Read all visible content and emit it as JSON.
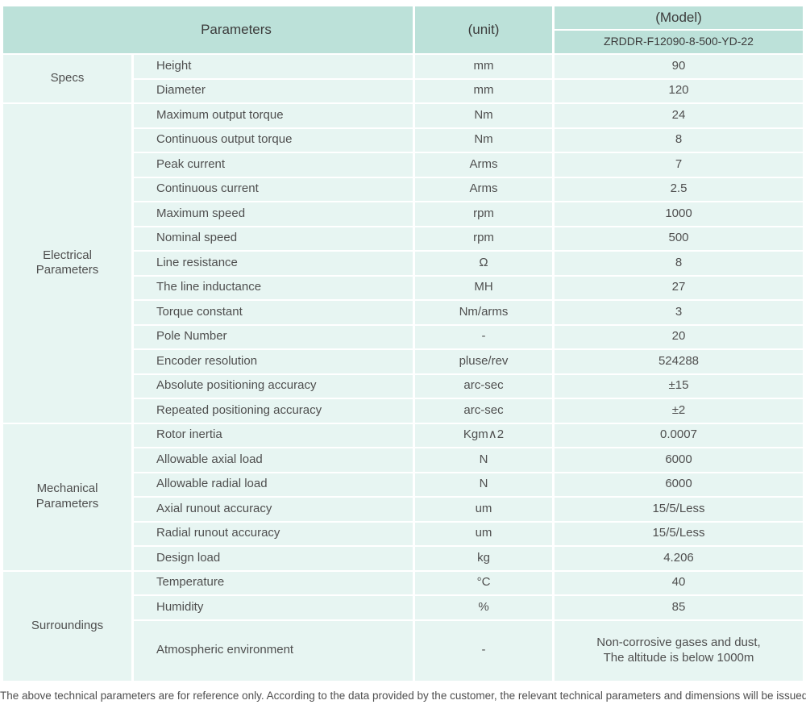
{
  "colors": {
    "header_bg": "#bce1d9",
    "cell_bg": "#e7f5f2",
    "separator": "#ffffff",
    "text": "#4f4f4f"
  },
  "header": {
    "parameters_label": "Parameters",
    "unit_label": "(unit)",
    "model_label": "(Model)",
    "model_code": "ZRDDR-F12090-8-500-YD-22"
  },
  "sections": [
    {
      "label": "Specs",
      "rows": [
        {
          "name": "Height",
          "unit": "mm",
          "value": "90"
        },
        {
          "name": "Diameter",
          "unit": "mm",
          "value": "120"
        }
      ]
    },
    {
      "label": "Electrical Parameters",
      "rows": [
        {
          "name": "Maximum output torque",
          "unit": "Nm",
          "value": "24"
        },
        {
          "name": "Continuous output torque",
          "unit": "Nm",
          "value": "8"
        },
        {
          "name": "Peak current",
          "unit": "Arms",
          "value": "7"
        },
        {
          "name": "Continuous current",
          "unit": "Arms",
          "value": "2.5"
        },
        {
          "name": "Maximum speed",
          "unit": "rpm",
          "value": "1000"
        },
        {
          "name": "Nominal speed",
          "unit": "rpm",
          "value": "500"
        },
        {
          "name": "Line resistance",
          "unit": "Ω",
          "value": "8"
        },
        {
          "name": "The line inductance",
          "unit": "MH",
          "value": "27"
        },
        {
          "name": "Torque constant",
          "unit": "Nm/arms",
          "value": "3"
        },
        {
          "name": "Pole Number",
          "unit": "-",
          "value": "20"
        },
        {
          "name": "Encoder resolution",
          "unit": "pluse/rev",
          "value": "524288"
        },
        {
          "name": "Absolute positioning accuracy",
          "unit": "arc-sec",
          "value": "±15"
        },
        {
          "name": "Repeated positioning accuracy",
          "unit": "arc-sec",
          "value": "±2"
        }
      ]
    },
    {
      "label": "Mechanical Parameters",
      "rows": [
        {
          "name": "Rotor inertia",
          "unit": "Kgm∧2",
          "value": "0.0007"
        },
        {
          "name": "Allowable axial load",
          "unit": "N",
          "value": "6000"
        },
        {
          "name": "Allowable radial load",
          "unit": "N",
          "value": "6000"
        },
        {
          "name": "Axial runout accuracy",
          "unit": "um",
          "value": "15/5/Less"
        },
        {
          "name": "Radial runout accuracy",
          "unit": "um",
          "value": "15/5/Less"
        },
        {
          "name": "Design load",
          "unit": "kg",
          "value": "4.206"
        }
      ]
    },
    {
      "label": "Surroundings",
      "rows": [
        {
          "name": "Temperature",
          "unit": "°C",
          "value": "40"
        },
        {
          "name": "Humidity",
          "unit": "%",
          "value": "85"
        },
        {
          "name": "Atmospheric environment",
          "unit": "-",
          "value": "Non-corrosive gases and dust,\nThe altitude is below 1000m"
        }
      ]
    }
  ],
  "footer": {
    "note": "The above technical parameters are for reference only. According to the data provided by the customer, the relevant technical parameters and dimensions will be issued."
  }
}
